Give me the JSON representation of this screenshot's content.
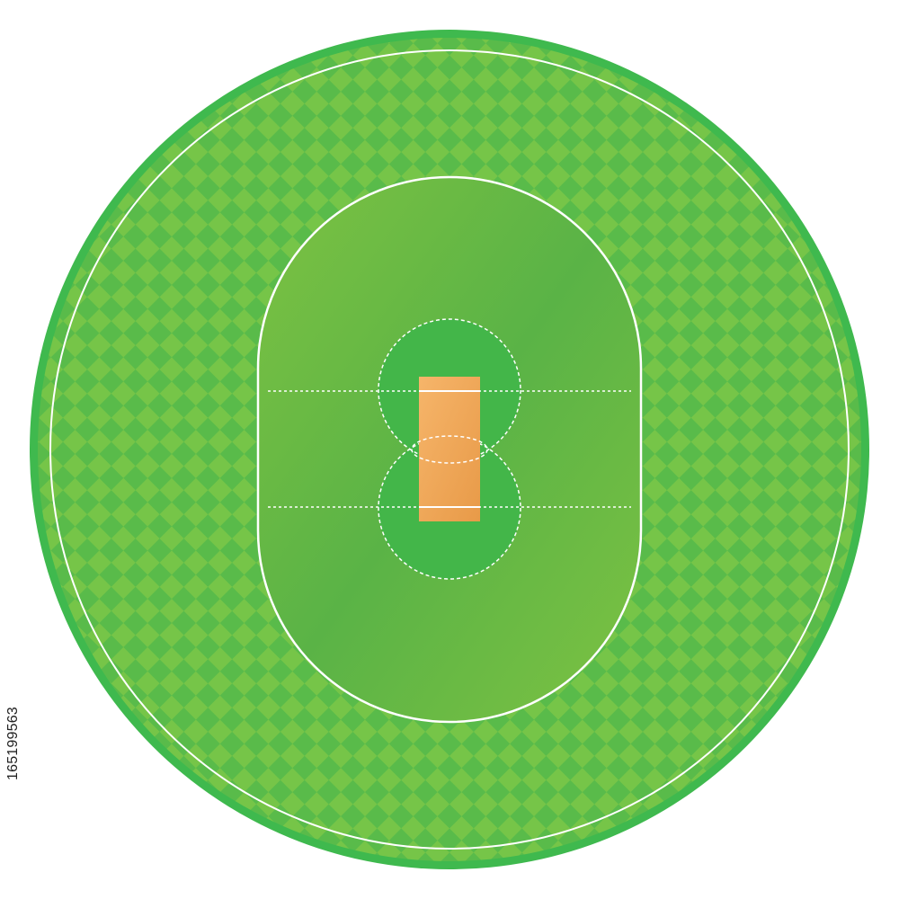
{
  "image": {
    "subject": "cricket-field",
    "background_color": "#ffffff"
  },
  "colors": {
    "outer_rim": "#3fb94e",
    "outfield_light": "#76c548",
    "outfield_dark": "#4fb84a",
    "infield_light": "#7dc242",
    "infield_dark": "#5ab346",
    "close_circle_fill": "#43b649",
    "pitch_light": "#f6b56a",
    "pitch_dark": "#e89a48",
    "line_color": "#ffffff"
  },
  "stock_id": "165199563"
}
